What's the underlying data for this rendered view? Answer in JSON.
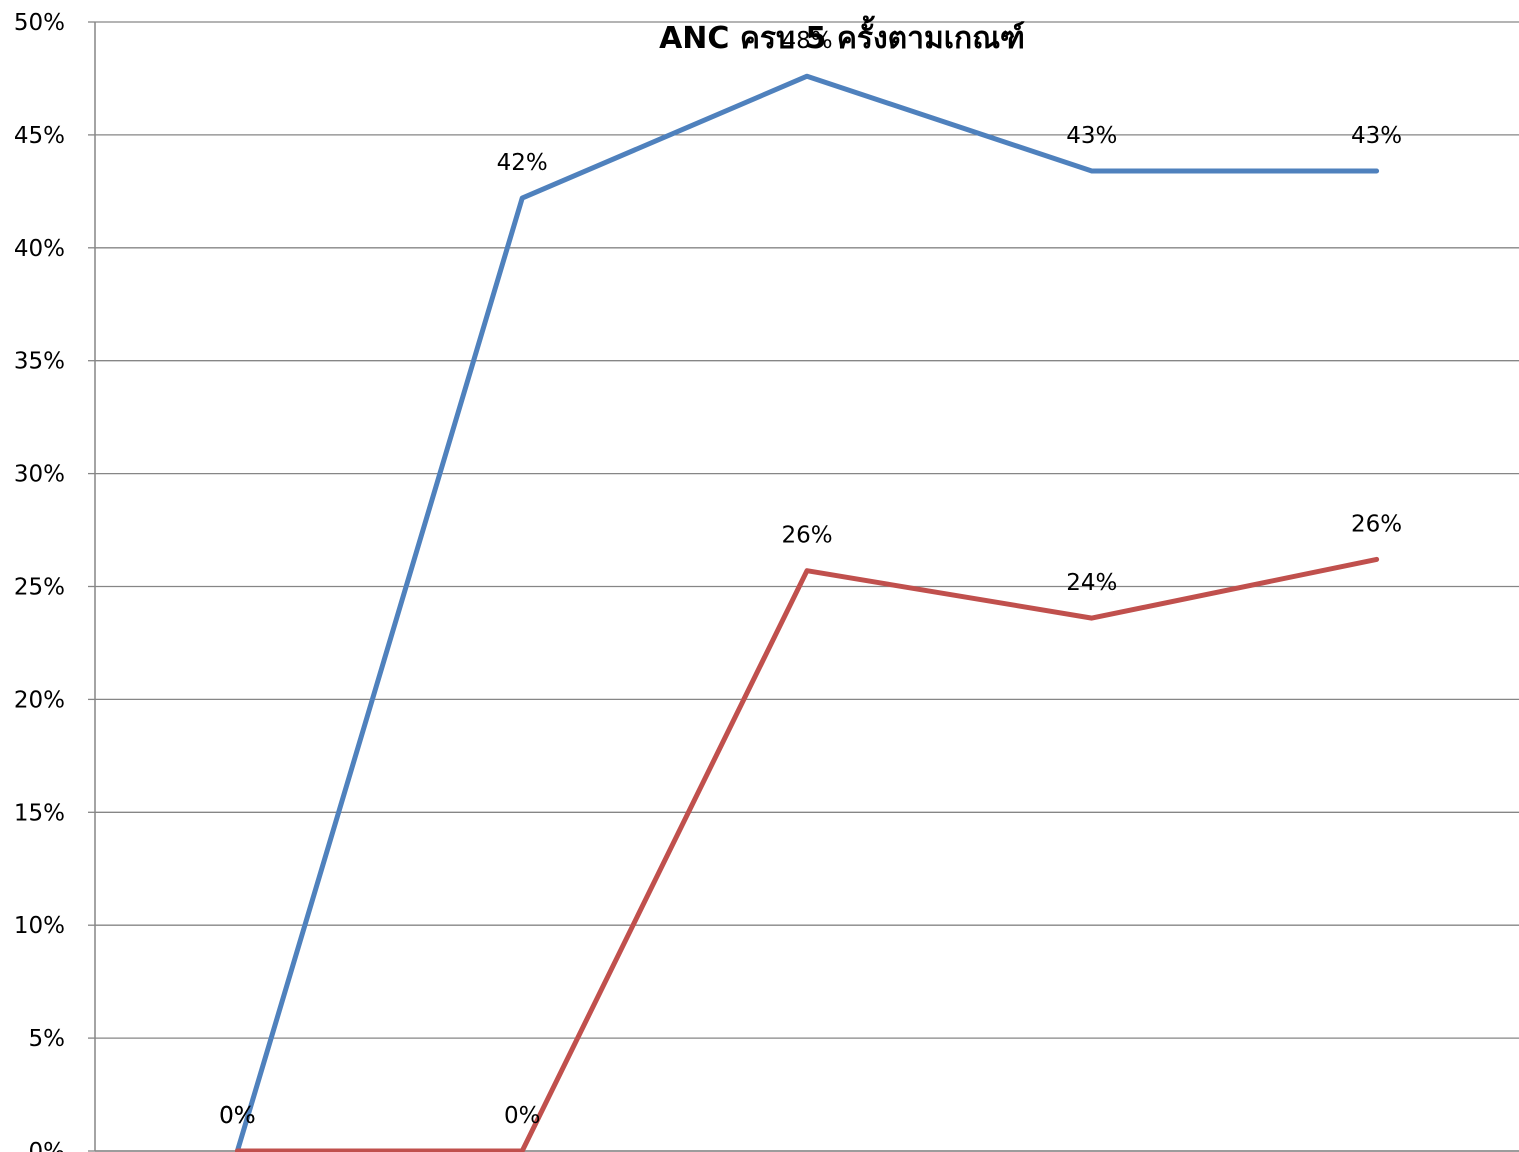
{
  "chart_data": {
    "type": "line",
    "title": "ANC ครบ 5 ครั้งตามเกณฑ์",
    "xlabel": "",
    "ylabel": "",
    "ylim": [
      0,
      0.5
    ],
    "yticks": [
      {
        "value": 0.0,
        "label": "0%"
      },
      {
        "value": 0.05,
        "label": "5%"
      },
      {
        "value": 0.1,
        "label": "10%"
      },
      {
        "value": 0.15,
        "label": "15%"
      },
      {
        "value": 0.2,
        "label": "20%"
      },
      {
        "value": 0.25,
        "label": "25%"
      },
      {
        "value": 0.3,
        "label": "30%"
      },
      {
        "value": 0.35,
        "label": "35%"
      },
      {
        "value": 0.4,
        "label": "40%"
      },
      {
        "value": 0.45,
        "label": "45%"
      },
      {
        "value": 0.5,
        "label": "50%"
      }
    ],
    "grid": true,
    "legend": "none",
    "categories": [
      "",
      "",
      "",
      "",
      ""
    ],
    "series": [
      {
        "color": "#4F81BD",
        "values": [
          0.0,
          0.422,
          0.476,
          0.434,
          0.434
        ],
        "labels": [
          "0%",
          "42%",
          "48%",
          "43%",
          "43%"
        ]
      },
      {
        "color": "#C0504D",
        "values": [
          0.0,
          0.0,
          0.257,
          0.236,
          0.262
        ],
        "labels": [
          "0%",
          "0%",
          "26%",
          "24%",
          "26%"
        ]
      }
    ]
  }
}
